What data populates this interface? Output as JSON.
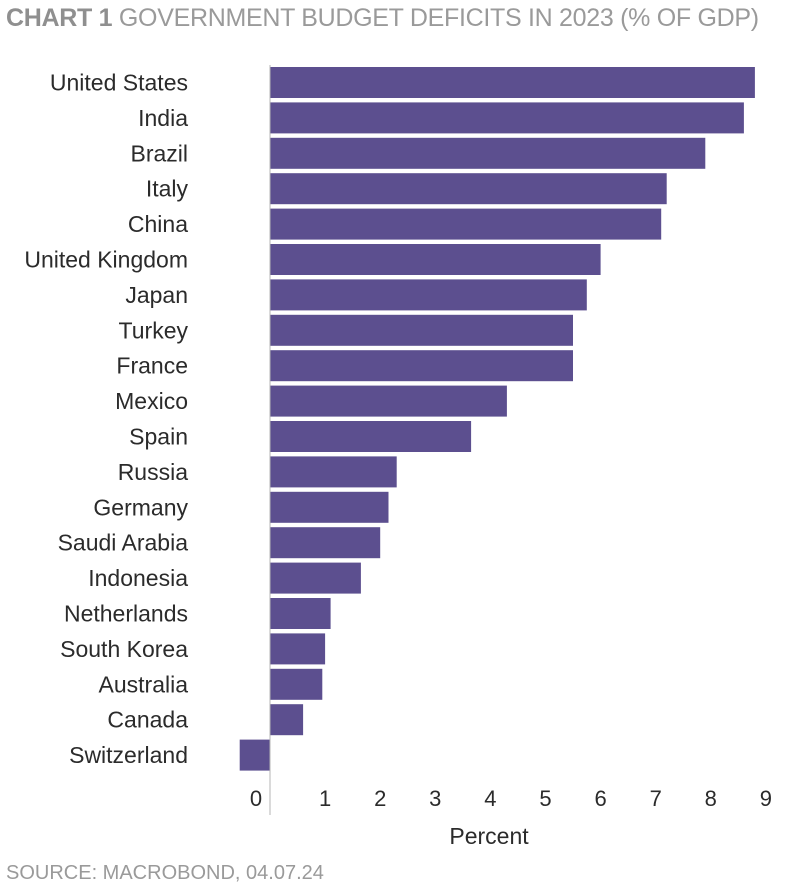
{
  "header": {
    "chart_label": "CHART 1",
    "title_text": "GOVERNMENT BUDGET DEFICITS IN 2023 (% OF GDP)"
  },
  "footer": {
    "source": "SOURCE: MACROBOND, 04.07.24"
  },
  "colors": {
    "bar": "#5c4f8f",
    "axis": "#b5b5b5"
  },
  "chart_data": {
    "type": "bar",
    "orientation": "horizontal",
    "categories": [
      "United States",
      "India",
      "Brazil",
      "Italy",
      "China",
      "United Kingdom",
      "Japan",
      "Turkey",
      "France",
      "Mexico",
      "Spain",
      "Russia",
      "Germany",
      "Saudi Arabia",
      "Indonesia",
      "Netherlands",
      "South Korea",
      "Australia",
      "Canada",
      "Switzerland"
    ],
    "values": [
      8.8,
      8.6,
      7.9,
      7.2,
      7.1,
      6.0,
      5.75,
      5.5,
      5.5,
      4.3,
      3.65,
      2.3,
      2.15,
      2.0,
      1.65,
      1.1,
      1.0,
      0.95,
      0.6,
      -0.55
    ],
    "xlabel": "Percent",
    "ticks": [
      "0",
      "1",
      "2",
      "3",
      "4",
      "5",
      "6",
      "7",
      "8",
      "9"
    ],
    "xlim": [
      -0.55,
      9
    ]
  }
}
